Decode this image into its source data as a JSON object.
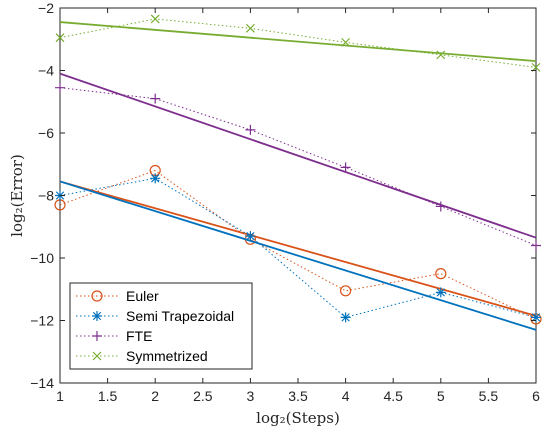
{
  "chart_data": {
    "type": "line",
    "title": "",
    "xlabel": "log₂(Steps)",
    "ylabel": "log₂(Error)",
    "xlim": [
      1,
      6
    ],
    "ylim": [
      -14,
      -2
    ],
    "xticks": [
      1,
      1.5,
      2,
      2.5,
      3,
      3.5,
      4,
      4.5,
      5,
      5.5,
      6
    ],
    "yticks": [
      -14,
      -12,
      -10,
      -8,
      -6,
      -4,
      -2
    ],
    "grid": false,
    "legend_position": "bottom-left",
    "series": [
      {
        "name": "Euler",
        "color": "#D95319",
        "marker": "circle",
        "x": [
          1,
          2,
          3,
          4,
          5,
          6
        ],
        "y": [
          -8.3,
          -7.2,
          -9.4,
          -11.05,
          -10.5,
          -11.95
        ],
        "fit": {
          "x": [
            1,
            6
          ],
          "y": [
            -7.55,
            -11.85
          ]
        }
      },
      {
        "name": "Semi Trapezoidal",
        "color": "#0072BD",
        "marker": "asterisk",
        "x": [
          1,
          2,
          3,
          4,
          5,
          6
        ],
        "y": [
          -8.0,
          -7.45,
          -9.3,
          -11.9,
          -11.1,
          -11.9
        ],
        "fit": {
          "x": [
            1,
            6
          ],
          "y": [
            -7.55,
            -12.3
          ]
        }
      },
      {
        "name": "FTE",
        "color": "#7E2F8E",
        "marker": "plus",
        "x": [
          1,
          2,
          3,
          4,
          5,
          6
        ],
        "y": [
          -4.55,
          -4.9,
          -5.9,
          -7.1,
          -8.35,
          -9.6
        ],
        "fit": {
          "x": [
            1,
            6
          ],
          "y": [
            -4.1,
            -9.35
          ]
        }
      },
      {
        "name": "Symmetrized",
        "color": "#77AC30",
        "marker": "x",
        "x": [
          1,
          2,
          3,
          4,
          5,
          6
        ],
        "y": [
          -2.95,
          -2.35,
          -2.65,
          -3.1,
          -3.5,
          -3.9
        ],
        "fit": {
          "x": [
            1,
            6
          ],
          "y": [
            -2.45,
            -3.7
          ]
        }
      }
    ]
  }
}
